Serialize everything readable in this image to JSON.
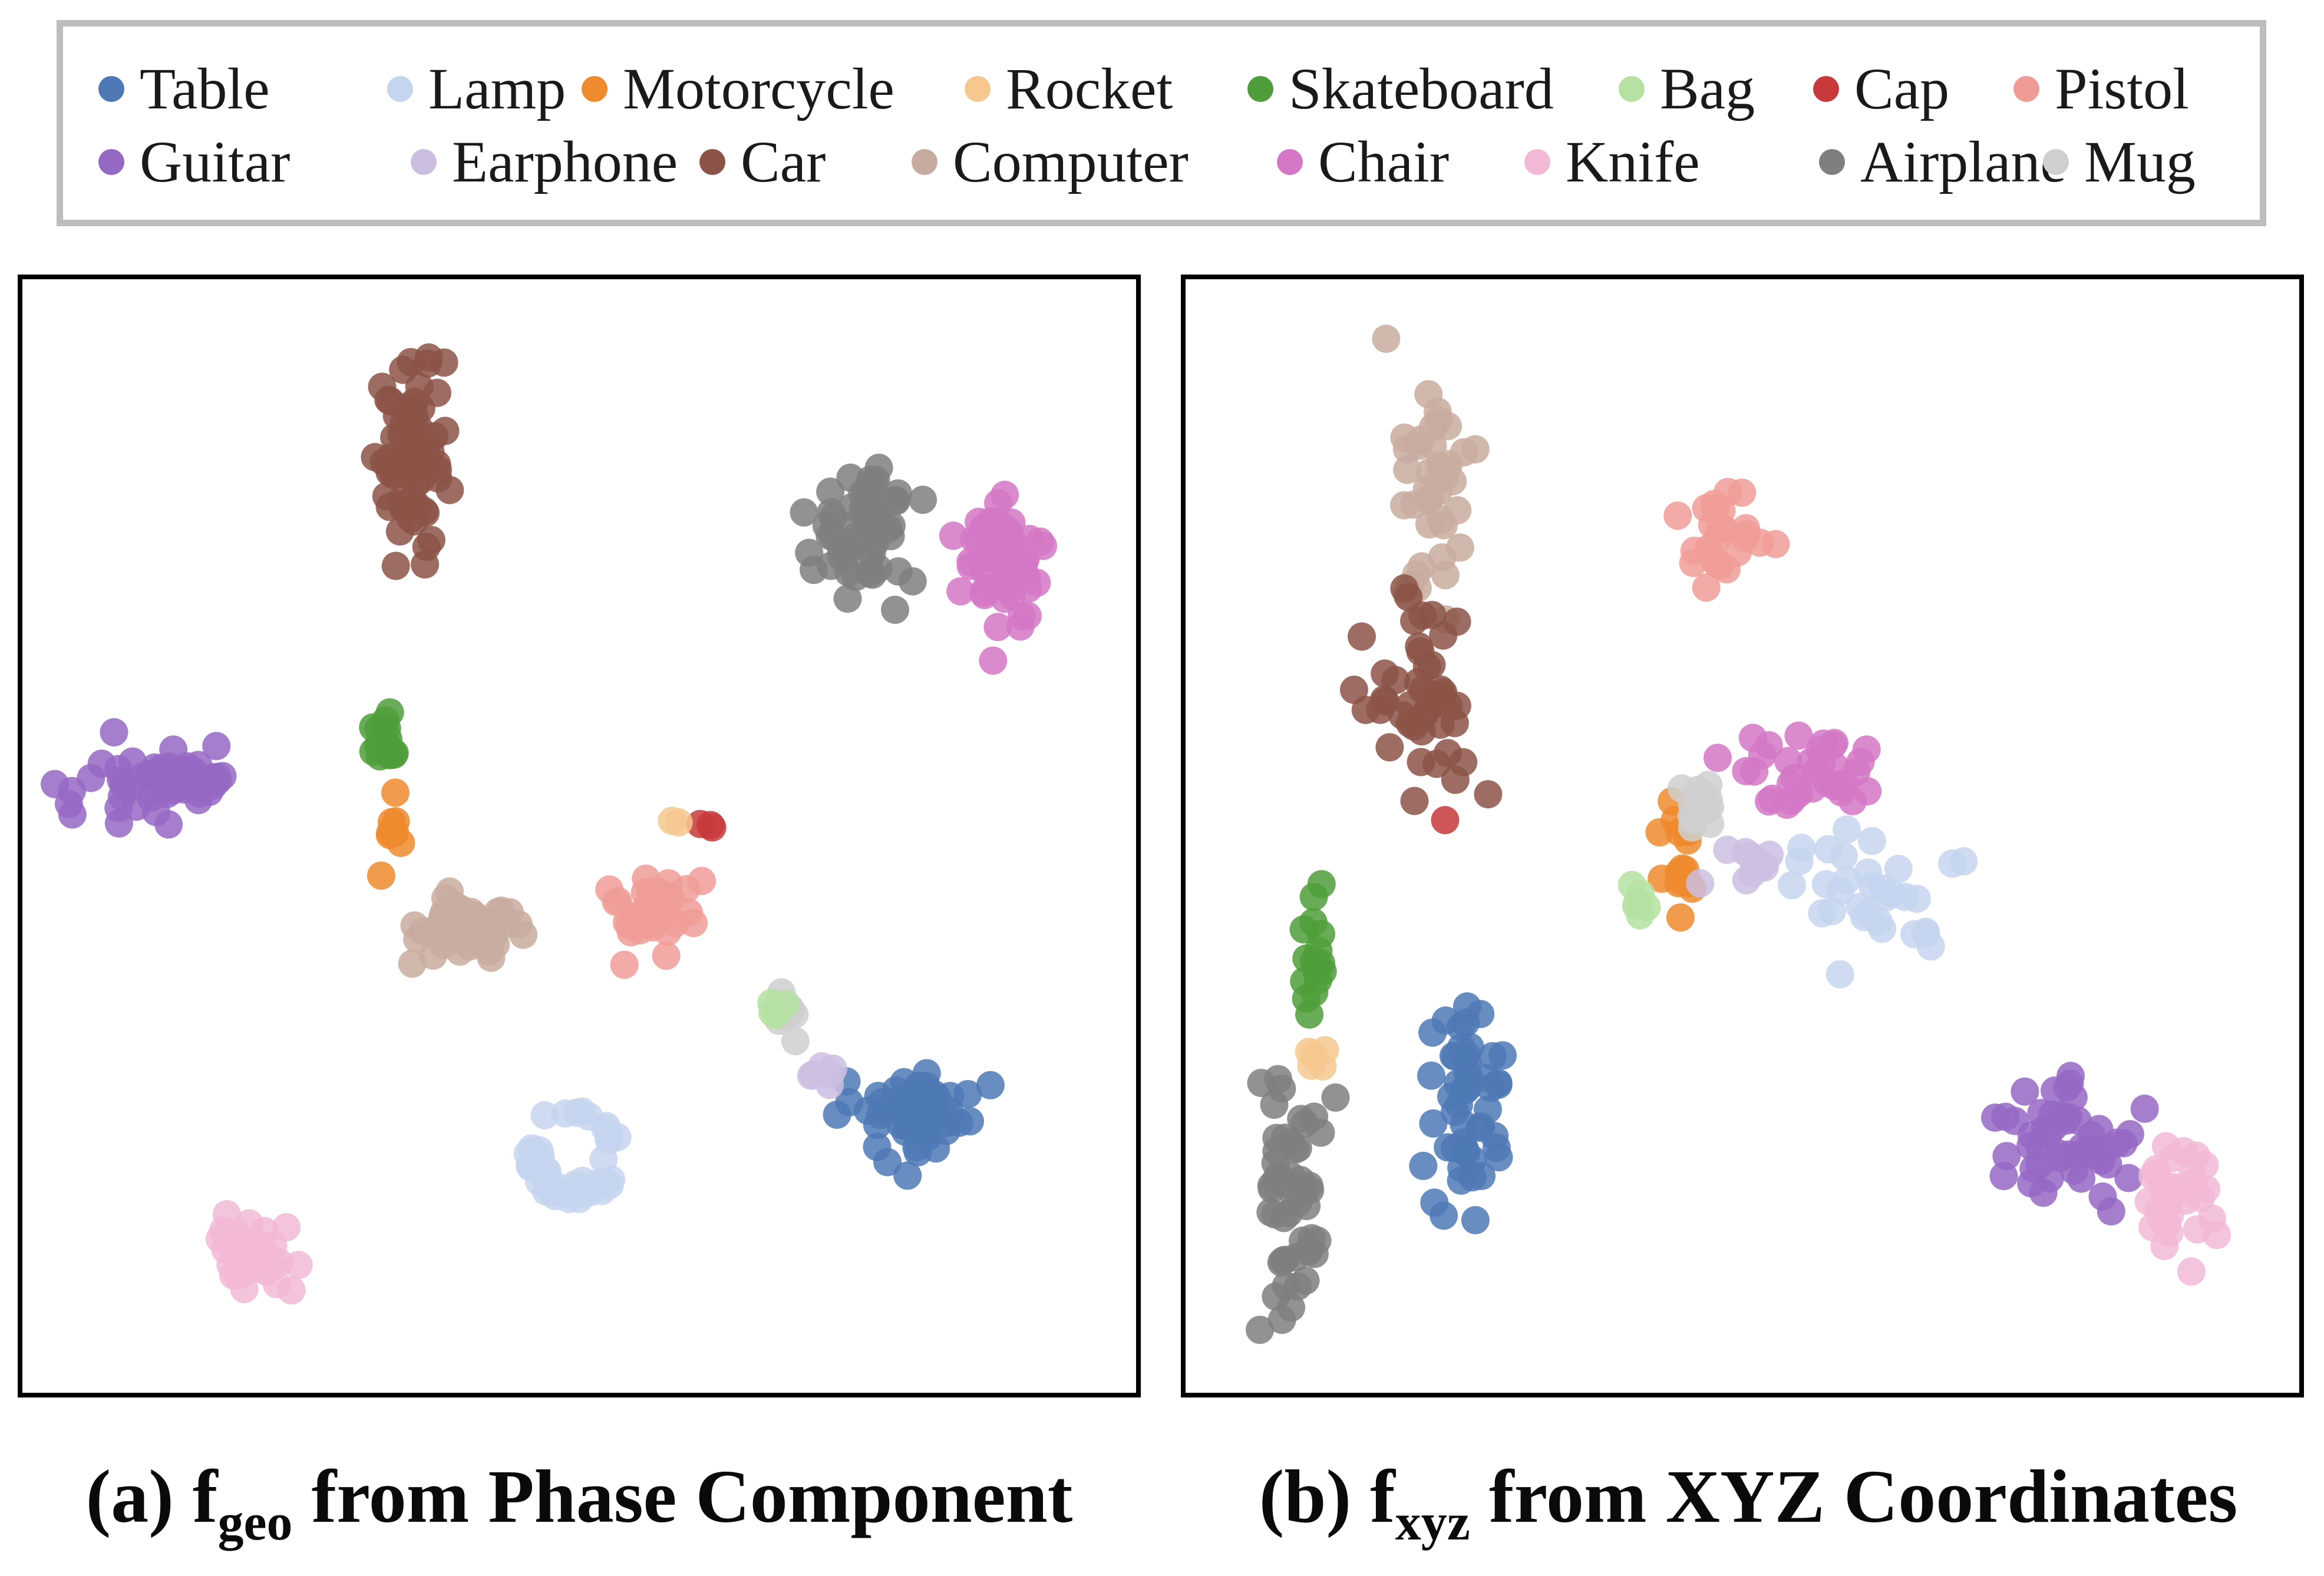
{
  "colors": {
    "Table": "#4e79b5",
    "Lamp": "#c6d5ef",
    "Motorcycle": "#ef8a2e",
    "Rocket": "#f6c88f",
    "Skateboard": "#4f9d3a",
    "Bag": "#b5e2a2",
    "Cap": "#c8393b",
    "Pistol": "#f09c96",
    "Guitar": "#9568c4",
    "Earphone": "#cbbee0",
    "Car": "#8c5448",
    "Computer": "#c8ab9f",
    "Chair": "#d477c6",
    "Knife": "#f2b8d6",
    "Airplane": "#7f7f7f",
    "Mug": "#cfcfcf"
  },
  "legend": {
    "rows": [
      [
        "Table",
        "Lamp",
        "Motorcycle",
        "Rocket",
        "Skateboard",
        "Bag",
        "Cap",
        "Pistol"
      ],
      [
        "Guitar",
        "Earphone",
        "Car",
        "Computer",
        "Chair",
        "Knife",
        "Airplane",
        "Mug"
      ]
    ]
  },
  "captions": {
    "a": {
      "prefix": "(a) f",
      "sub": "geo",
      "suffix": " from Phase Component"
    },
    "b": {
      "prefix": "(b) f",
      "sub": "xyz",
      "suffix": " from XYZ Coordinates"
    }
  },
  "chart_data": [
    {
      "type": "scatter",
      "panel": "a",
      "title": "",
      "xlabel": "",
      "ylabel": "",
      "xlim": [
        0,
        100
      ],
      "ylim": [
        0,
        100
      ],
      "grid": false,
      "series": [
        {
          "name": "Car",
          "color": "#8c5448",
          "shape": "ellipse",
          "center": [
            35,
            84
          ],
          "spread": [
            2.6,
            7.5
          ],
          "count": 70
        },
        {
          "name": "Airplane",
          "color": "#7f7f7f",
          "shape": "ellipse",
          "center": [
            75.5,
            77
          ],
          "spread": [
            4.5,
            4.2
          ],
          "count": 55
        },
        {
          "name": "Chair",
          "color": "#d477c6",
          "shape": "ellipse",
          "center": [
            88,
            73.5
          ],
          "spread": [
            3.0,
            5.5
          ],
          "count": 50
        },
        {
          "name": "Guitar",
          "color": "#9568c4",
          "shape": "ellipse",
          "center": [
            11.5,
            54.5
          ],
          "spread": [
            6.5,
            3.2
          ],
          "count": 55
        },
        {
          "name": "Skateboard",
          "color": "#4f9d3a",
          "shape": "ellipse",
          "center": [
            32.5,
            59
          ],
          "spread": [
            0.9,
            2.5
          ],
          "count": 16
        },
        {
          "name": "Motorcycle",
          "color": "#ef8a2e",
          "shape": "ellipse",
          "center": [
            33.5,
            50
          ],
          "spread": [
            0.9,
            3.0
          ],
          "count": 9
        },
        {
          "name": "Computer",
          "color": "#c8ab9f",
          "shape": "ellipse",
          "center": [
            40.5,
            41.5
          ],
          "spread": [
            4.0,
            2.8
          ],
          "count": 45
        },
        {
          "name": "Pistol",
          "color": "#f09c96",
          "shape": "ellipse",
          "center": [
            56,
            43
          ],
          "spread": [
            3.2,
            3.0
          ],
          "count": 38
        },
        {
          "name": "Table",
          "color": "#4e79b5",
          "shape": "ellipse",
          "center": [
            79.5,
            25
          ],
          "spread": [
            4.8,
            3.2
          ],
          "count": 55
        },
        {
          "name": "Lamp",
          "color": "#c6d5ef",
          "shape": "ring",
          "center": [
            49.5,
            21.5
          ],
          "spread": [
            4.2,
            3.8
          ],
          "count": 44
        },
        {
          "name": "Knife",
          "color": "#f2b8d6",
          "shape": "ellipse",
          "center": [
            20.5,
            12
          ],
          "spread": [
            2.8,
            3.5
          ],
          "count": 32
        },
        {
          "name": "Mug",
          "color": "#cfcfcf",
          "shape": "ellipse",
          "center": [
            68.5,
            34
          ],
          "spread": [
            1.5,
            1.5
          ],
          "count": 12
        },
        {
          "name": "Earphone",
          "color": "#cbbee0",
          "shape": "ellipse",
          "center": [
            72.5,
            29
          ],
          "spread": [
            1.2,
            1.0
          ],
          "count": 6
        },
        {
          "name": "Bag",
          "color": "#b5e2a2",
          "shape": "ellipse",
          "center": [
            67.5,
            34.5
          ],
          "spread": [
            0.8,
            0.8
          ],
          "count": 4
        },
        {
          "name": "Cap",
          "color": "#c8393b",
          "shape": "ellipse",
          "center": [
            61.5,
            51
          ],
          "spread": [
            0.8,
            0.3
          ],
          "count": 3
        },
        {
          "name": "Rocket",
          "color": "#f6c88f",
          "shape": "ellipse",
          "center": [
            59,
            51.5
          ],
          "spread": [
            0.5,
            0.3
          ],
          "count": 2
        }
      ]
    },
    {
      "type": "scatter",
      "panel": "b",
      "title": "",
      "xlabel": "",
      "ylabel": "",
      "xlim": [
        0,
        100
      ],
      "ylim": [
        0,
        100
      ],
      "grid": false,
      "series": [
        {
          "name": "Computer",
          "color": "#c8ab9f",
          "shape": "ellipse",
          "center": [
            22,
            80
          ],
          "spread": [
            3.0,
            8.5
          ],
          "count": 40
        },
        {
          "name": "Car",
          "color": "#8c5448",
          "shape": "ellipse",
          "center": [
            21,
            62
          ],
          "spread": [
            4.0,
            6.5
          ],
          "count": 48
        },
        {
          "name": "Pistol",
          "color": "#f09c96",
          "shape": "ellipse",
          "center": [
            48,
            77
          ],
          "spread": [
            3.2,
            4.0
          ],
          "count": 25
        },
        {
          "name": "Chair",
          "color": "#d477c6",
          "shape": "ellipse",
          "center": [
            56.5,
            55.5
          ],
          "spread": [
            4.0,
            3.0
          ],
          "count": 35
        },
        {
          "name": "Lamp",
          "color": "#c6d5ef",
          "shape": "ellipse",
          "center": [
            60.5,
            45
          ],
          "spread": [
            6.0,
            4.5
          ],
          "count": 32
        },
        {
          "name": "Motorcycle",
          "color": "#ef8a2e",
          "shape": "ellipse",
          "center": [
            44.5,
            47
          ],
          "spread": [
            1.5,
            4.5
          ],
          "count": 15
        },
        {
          "name": "Mug",
          "color": "#cfcfcf",
          "shape": "ellipse",
          "center": [
            46,
            53
          ],
          "spread": [
            2.0,
            2.0
          ],
          "count": 15
        },
        {
          "name": "Earphone",
          "color": "#cbbee0",
          "shape": "ellipse",
          "center": [
            49.5,
            47.5
          ],
          "spread": [
            2.5,
            2.0
          ],
          "count": 10
        },
        {
          "name": "Table",
          "color": "#4e79b5",
          "shape": "ellipse",
          "center": [
            25.5,
            26
          ],
          "spread": [
            2.8,
            9.0
          ],
          "count": 50
        },
        {
          "name": "Skateboard",
          "color": "#4f9d3a",
          "shape": "ellipse",
          "center": [
            11.5,
            40
          ],
          "spread": [
            0.9,
            5.5
          ],
          "count": 18
        },
        {
          "name": "Airplane",
          "color": "#7f7f7f",
          "shape": "ellipse",
          "center": [
            10,
            18
          ],
          "spread": [
            2.4,
            9.5
          ],
          "count": 50
        },
        {
          "name": "Guitar",
          "color": "#9568c4",
          "shape": "ellipse",
          "center": [
            79,
            23
          ],
          "spread": [
            5.0,
            4.0
          ],
          "count": 50
        },
        {
          "name": "Knife",
          "color": "#f2b8d6",
          "shape": "ellipse",
          "center": [
            89,
            17.5
          ],
          "spread": [
            3.0,
            4.5
          ],
          "count": 32
        },
        {
          "name": "Bag",
          "color": "#b5e2a2",
          "shape": "ellipse",
          "center": [
            40.5,
            44
          ],
          "spread": [
            1.0,
            1.5
          ],
          "count": 6
        },
        {
          "name": "Rocket",
          "color": "#f6c88f",
          "shape": "ellipse",
          "center": [
            11.5,
            31
          ],
          "spread": [
            0.8,
            2.5
          ],
          "count": 5
        },
        {
          "name": "Cap",
          "color": "#c8393b",
          "shape": "ellipse",
          "center": [
            23,
            51.5
          ],
          "spread": [
            0.3,
            0.3
          ],
          "count": 1
        }
      ]
    }
  ]
}
